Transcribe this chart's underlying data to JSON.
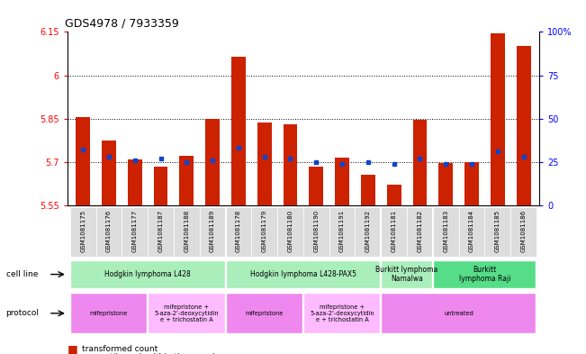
{
  "title": "GDS4978 / 7933359",
  "samples": [
    "GSM1081175",
    "GSM1081176",
    "GSM1081177",
    "GSM1081187",
    "GSM1081188",
    "GSM1081189",
    "GSM1081178",
    "GSM1081179",
    "GSM1081180",
    "GSM1081190",
    "GSM1081191",
    "GSM1081192",
    "GSM1081181",
    "GSM1081182",
    "GSM1081183",
    "GSM1081184",
    "GSM1081185",
    "GSM1081186"
  ],
  "red_values": [
    5.855,
    5.775,
    5.71,
    5.685,
    5.72,
    5.85,
    6.065,
    5.835,
    5.83,
    5.685,
    5.715,
    5.655,
    5.62,
    5.845,
    5.695,
    5.7,
    6.145,
    6.1
  ],
  "blue_percentiles": [
    32,
    28,
    26,
    27,
    25,
    26,
    33,
    28,
    27,
    25,
    24,
    25,
    24,
    27,
    24,
    24,
    31,
    28
  ],
  "ylim_left": [
    5.55,
    6.15
  ],
  "ylim_right": [
    0,
    100
  ],
  "yticks_left": [
    5.55,
    5.7,
    5.85,
    6.0,
    6.15
  ],
  "yticks_left_labels": [
    "5.55",
    "5.7",
    "5.85",
    "6",
    "6.15"
  ],
  "yticks_right": [
    0,
    25,
    50,
    75,
    100
  ],
  "yticks_right_labels": [
    "0",
    "25",
    "50",
    "75",
    "100%"
  ],
  "hlines": [
    5.7,
    5.85,
    6.0
  ],
  "bar_bottom": 5.55,
  "cell_lines": [
    {
      "label": "Hodgkin lymphoma L428",
      "start": 0,
      "end": 6,
      "color": "#aaeebb"
    },
    {
      "label": "Hodgkin lymphoma L428-PAX5",
      "start": 6,
      "end": 12,
      "color": "#aaeebb"
    },
    {
      "label": "Burkitt lymphoma\nNamalwa",
      "start": 12,
      "end": 14,
      "color": "#aaeebb"
    },
    {
      "label": "Burkitt\nlymphoma Raji",
      "start": 14,
      "end": 18,
      "color": "#55dd88"
    }
  ],
  "protocols": [
    {
      "label": "mifepristone",
      "start": 0,
      "end": 3,
      "color": "#ee88ee"
    },
    {
      "label": "mifepristone +\n5-aza-2'-deoxycytidin\ne + trichostatin A",
      "start": 3,
      "end": 6,
      "color": "#ffbbff"
    },
    {
      "label": "mifepristone",
      "start": 6,
      "end": 9,
      "color": "#ee88ee"
    },
    {
      "label": "mifepristone +\n5-aza-2'-deoxycytidin\ne + trichostatin A",
      "start": 9,
      "end": 12,
      "color": "#ffbbff"
    },
    {
      "label": "untreated",
      "start": 12,
      "end": 18,
      "color": "#ee88ee"
    }
  ],
  "red_color": "#cc2200",
  "blue_color": "#1144cc",
  "bg_color": "#ffffff",
  "tick_bg_color": "#dddddd"
}
